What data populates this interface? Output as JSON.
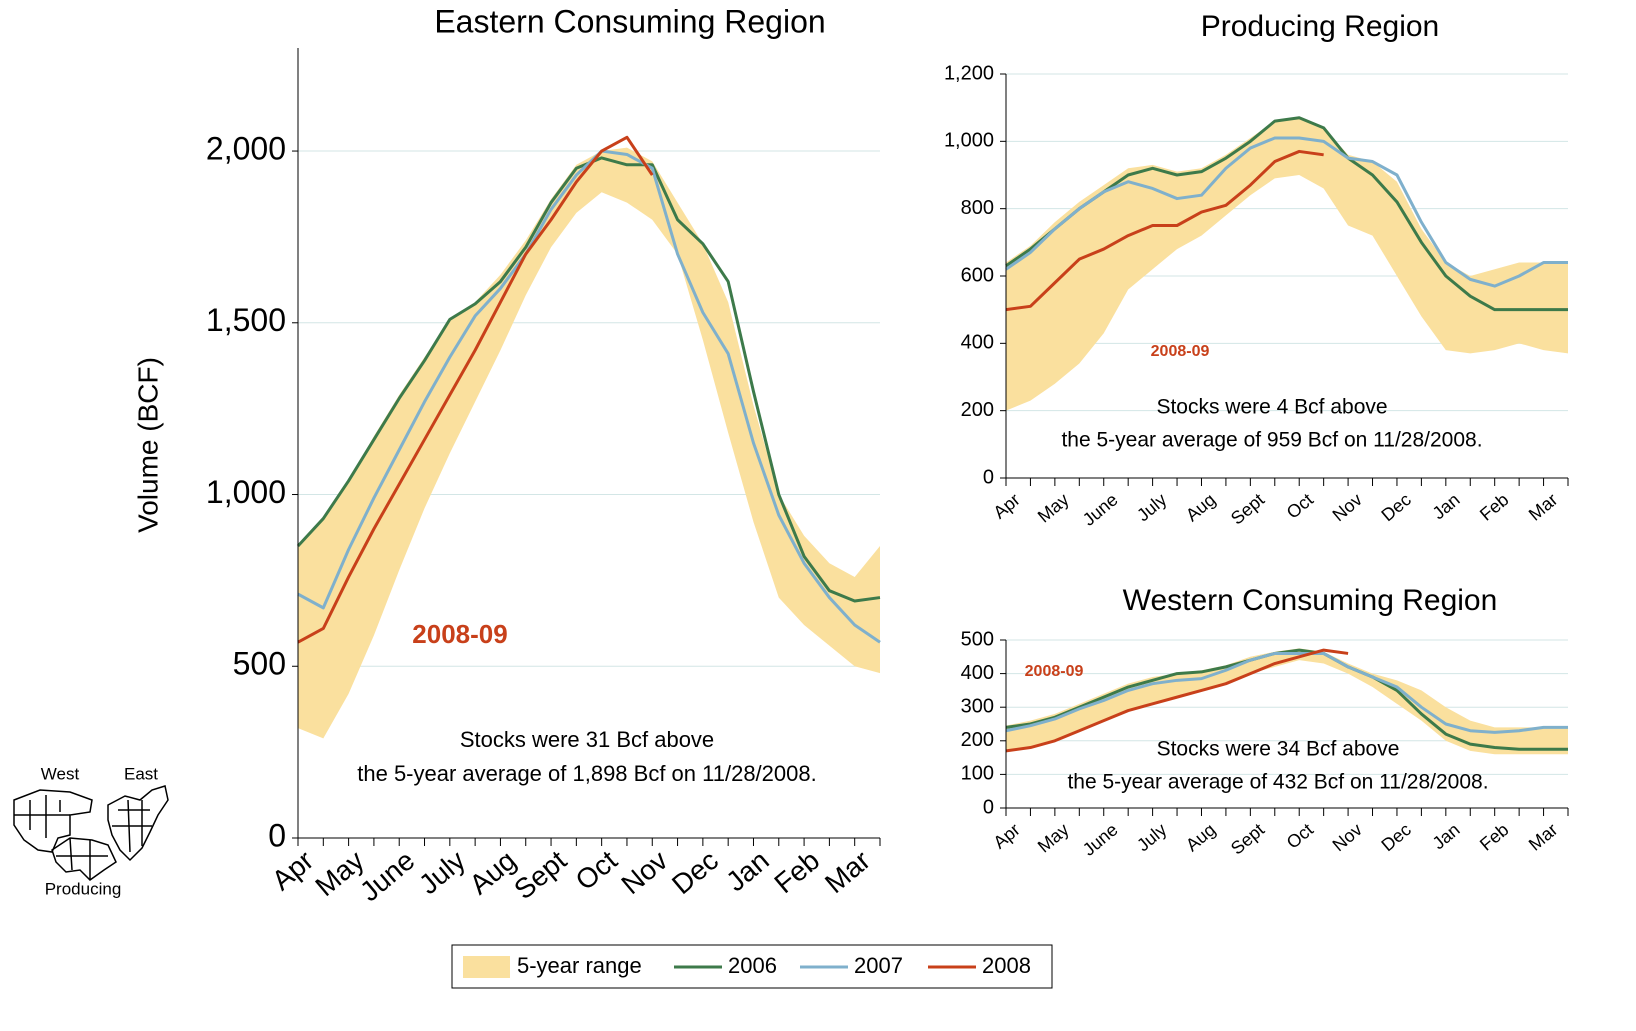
{
  "chart_data": [
    {
      "type": "line",
      "title": "Eastern Consuming Region",
      "ylabel": "Volume (BCF)",
      "categories": [
        "Apr",
        null,
        "May",
        null,
        "June",
        null,
        "July",
        null,
        "Aug",
        null,
        "Sept",
        null,
        "Oct",
        null,
        "Nov",
        null,
        "Dec",
        null,
        "Jan",
        null,
        "Feb",
        null,
        "Mar",
        null
      ],
      "ylim": [
        0,
        2300
      ],
      "yticks": [
        0,
        500,
        {
          "value": 1000,
          "label": "1,000"
        },
        {
          "value": 1500,
          "label": "1,500"
        },
        {
          "value": 2000,
          "label": "2,000"
        }
      ],
      "grid": true,
      "annotations": [
        "2008-09",
        "Stocks were 31 Bcf above",
        "the 5-year average of 1,898 Bcf on 11/28/2008."
      ],
      "series": [
        {
          "name": "5-year range",
          "color": "#fae09e",
          "low": [
            320,
            290,
            420,
            590,
            780,
            960,
            1120,
            1270,
            1420,
            1580,
            1720,
            1820,
            1880,
            1850,
            1800,
            1700,
            1450,
            1180,
            920,
            700,
            620,
            560,
            500,
            480
          ],
          "high": [
            850,
            930,
            1040,
            1170,
            1290,
            1400,
            1510,
            1560,
            1640,
            1740,
            1860,
            1960,
            2000,
            2010,
            1970,
            1850,
            1730,
            1560,
            1260,
            1000,
            880,
            800,
            760,
            850
          ]
        },
        {
          "name": "2006",
          "color": "#3d7a4a",
          "values": [
            850,
            930,
            1040,
            1160,
            1280,
            1390,
            1510,
            1555,
            1620,
            1720,
            1850,
            1950,
            1980,
            1960,
            1960,
            1800,
            1730,
            1620,
            1300,
            1000,
            820,
            720,
            690,
            700
          ]
        },
        {
          "name": "2007",
          "color": "#7fb0cc",
          "values": [
            710,
            670,
            840,
            990,
            1130,
            1270,
            1400,
            1520,
            1600,
            1700,
            1830,
            1930,
            2000,
            1990,
            1950,
            1700,
            1530,
            1410,
            1150,
            940,
            800,
            700,
            620,
            570
          ]
        },
        {
          "name": "2008",
          "color": "#c8401a",
          "values": [
            570,
            610,
            760,
            900,
            1030,
            1160,
            1290,
            1420,
            1560,
            1700,
            1800,
            1910,
            2000,
            2040,
            1930,
            null,
            null,
            null,
            null,
            null,
            null,
            null,
            null,
            null
          ]
        }
      ]
    },
    {
      "type": "line",
      "title": "Producing Region",
      "categories": [
        "Apr",
        null,
        "May",
        null,
        "June",
        null,
        "July",
        null,
        "Aug",
        null,
        "Sept",
        null,
        "Oct",
        null,
        "Nov",
        null,
        "Dec",
        null,
        "Jan",
        null,
        "Feb",
        null,
        "Mar",
        null
      ],
      "ylim": [
        0,
        1200
      ],
      "yticks": [
        0,
        200,
        400,
        600,
        800,
        {
          "value": 1000,
          "label": "1,000"
        },
        {
          "value": 1200,
          "label": "1,200"
        }
      ],
      "grid": true,
      "annotations": [
        "2008-09",
        "Stocks were 4 Bcf above",
        "the 5-year average of 959 Bcf on 11/28/2008."
      ],
      "series": [
        {
          "low": [
            200,
            230,
            280,
            340,
            430,
            560,
            620,
            680,
            720,
            780,
            840,
            890,
            900,
            860,
            750,
            720,
            600,
            480,
            380,
            370,
            380,
            400,
            380,
            370
          ],
          "high": [
            640,
            690,
            760,
            820,
            870,
            920,
            930,
            910,
            920,
            960,
            1010,
            1060,
            1070,
            1040,
            960,
            940,
            880,
            740,
            640,
            600,
            620,
            640,
            640,
            640
          ]
        },
        {
          "values": [
            630,
            680,
            740,
            800,
            850,
            900,
            920,
            900,
            910,
            950,
            1000,
            1060,
            1070,
            1040,
            950,
            900,
            820,
            700,
            600,
            540,
            500,
            500,
            500,
            500
          ]
        },
        {
          "values": [
            620,
            670,
            740,
            800,
            850,
            880,
            860,
            830,
            840,
            920,
            980,
            1010,
            1010,
            1000,
            950,
            940,
            900,
            760,
            640,
            590,
            570,
            600,
            640,
            640
          ]
        },
        {
          "values": [
            500,
            510,
            580,
            650,
            680,
            720,
            750,
            750,
            790,
            810,
            870,
            940,
            970,
            960,
            null,
            null,
            null,
            null,
            null,
            null,
            null,
            null,
            null,
            null
          ]
        }
      ]
    },
    {
      "type": "line",
      "title": "Western Consuming Region",
      "categories": [
        "Apr",
        null,
        "May",
        null,
        "June",
        null,
        "July",
        null,
        "Aug",
        null,
        "Sept",
        null,
        "Oct",
        null,
        "Nov",
        null,
        "Dec",
        null,
        "Jan",
        null,
        "Feb",
        null,
        "Mar",
        null
      ],
      "ylim": [
        0,
        500
      ],
      "yticks": [
        0,
        100,
        200,
        300,
        400,
        500
      ],
      "grid": true,
      "annotations": [
        "2008-09",
        "Stocks were 34 Bcf above",
        "the 5-year average of 432 Bcf on 11/28/2008."
      ],
      "series": [
        {
          "low": [
            175,
            180,
            200,
            230,
            260,
            290,
            310,
            330,
            350,
            370,
            400,
            420,
            440,
            430,
            400,
            360,
            310,
            260,
            200,
            170,
            160,
            160,
            160,
            160
          ],
          "high": [
            245,
            260,
            280,
            310,
            340,
            370,
            390,
            400,
            410,
            425,
            450,
            465,
            475,
            465,
            430,
            400,
            380,
            350,
            300,
            260,
            240,
            240,
            240,
            240
          ]
        },
        {
          "values": [
            240,
            250,
            270,
            300,
            330,
            360,
            380,
            400,
            405,
            420,
            440,
            460,
            470,
            460,
            420,
            390,
            350,
            280,
            220,
            190,
            180,
            175,
            175,
            175
          ]
        },
        {
          "values": [
            230,
            245,
            265,
            295,
            320,
            350,
            370,
            380,
            385,
            410,
            440,
            460,
            460,
            460,
            420,
            390,
            360,
            300,
            250,
            230,
            225,
            230,
            240,
            240
          ]
        },
        {
          "values": [
            170,
            180,
            200,
            230,
            260,
            290,
            310,
            330,
            350,
            370,
            400,
            430,
            450,
            470,
            460,
            null,
            null,
            null,
            null,
            null,
            null,
            null,
            null,
            null
          ]
        }
      ]
    }
  ],
  "map_labels": [
    "West",
    "East",
    "Producing"
  ]
}
